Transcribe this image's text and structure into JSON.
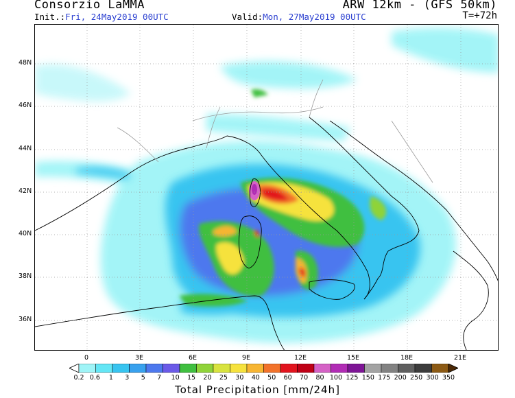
{
  "header": {
    "left_title": "Consorzio LaMMA",
    "right_title": "ARW 12km - (GFS 50km)",
    "init_label": "Init.:",
    "init_value": "Fri, 24May2019 00UTC",
    "valid_label": "Valid:",
    "valid_value": "Mon, 27May2019 00UTC",
    "lead_time": "T=+72h"
  },
  "map": {
    "lat_labels": [
      "48N",
      "46N",
      "44N",
      "42N",
      "40N",
      "38N",
      "36N"
    ],
    "lon_labels": [
      "0",
      "3E",
      "6E",
      "9E",
      "12E",
      "15E",
      "18E",
      "21E"
    ],
    "land_color": "#ffffff",
    "coast_color": "#000000",
    "border_color": "#9a9a9a",
    "grid_color": "#9a9a9a"
  },
  "colorbar": {
    "title": "Total Precipitation [mm/24h]",
    "labels": [
      "0.2",
      "0.6",
      "1",
      "3",
      "5",
      "7",
      "10",
      "15",
      "20",
      "25",
      "30",
      "40",
      "50",
      "60",
      "70",
      "80",
      "100",
      "125",
      "150",
      "175",
      "200",
      "250",
      "300",
      "350"
    ],
    "colors": [
      "#9ff4f7",
      "#64e6f5",
      "#37c4f0",
      "#38a1ee",
      "#4d78ee",
      "#6b5ae8",
      "#3fbf3f",
      "#8fd339",
      "#d8e33f",
      "#f6e23d",
      "#f7b532",
      "#f2722a",
      "#e2141e",
      "#bf0016",
      "#d562c6",
      "#b12cb5",
      "#7e1596",
      "#a3a3a3",
      "#828282",
      "#5f5f5f",
      "#3c3c3c",
      "#8c5a14",
      "#6d420d",
      "#4c2906"
    ]
  }
}
